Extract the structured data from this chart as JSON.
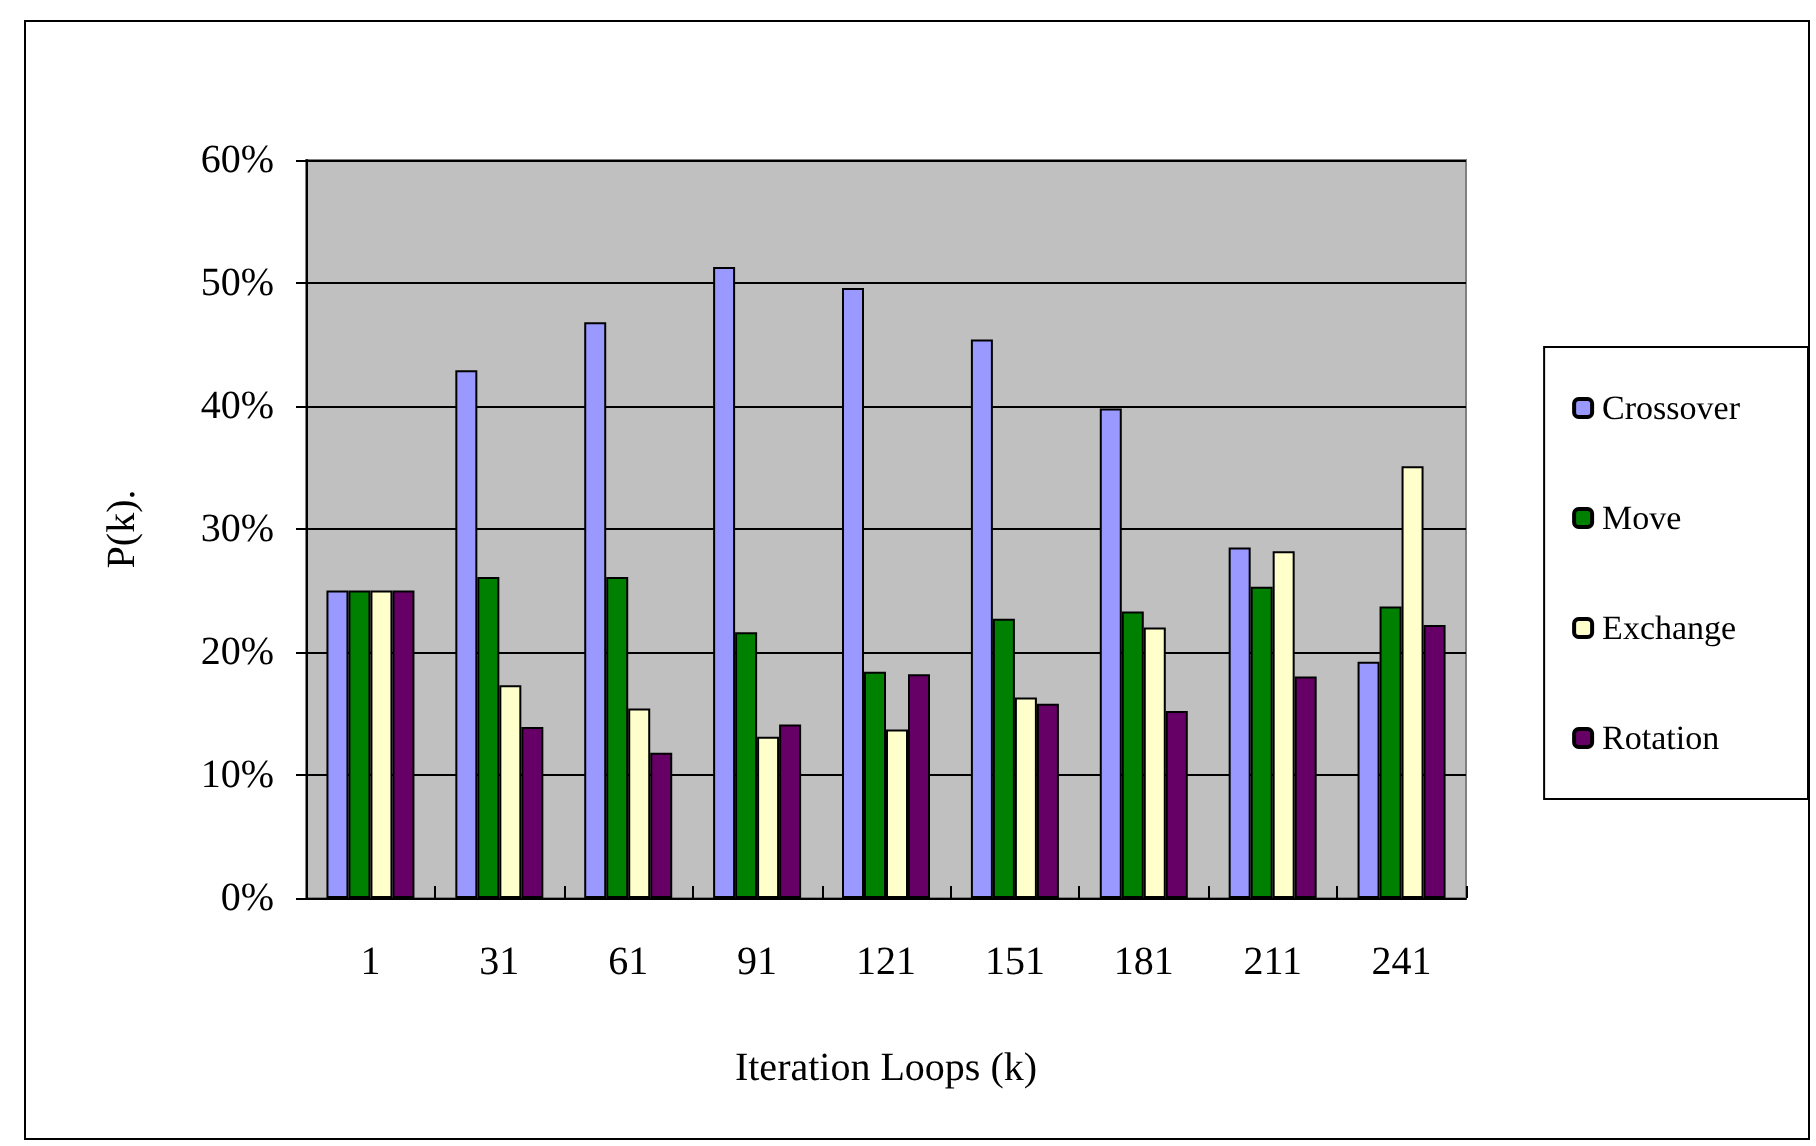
{
  "chart_data": {
    "type": "bar",
    "xlabel": "Iteration Loops (k)",
    "ylabel": "P(k).",
    "categories": [
      "1",
      "31",
      "61",
      "91",
      "121",
      "151",
      "181",
      "211",
      "241"
    ],
    "series": [
      {
        "name": "Crossover",
        "color": "#9999ff",
        "values": [
          25.0,
          42.9,
          46.8,
          51.3,
          49.6,
          45.4,
          39.8,
          28.5,
          19.2
        ]
      },
      {
        "name": "Move",
        "color": "#008000",
        "values": [
          25.0,
          26.1,
          26.1,
          21.6,
          18.4,
          22.7,
          23.3,
          25.3,
          23.7
        ]
      },
      {
        "name": "Exchange",
        "color": "#ffffcc",
        "values": [
          25.0,
          17.3,
          15.4,
          13.1,
          13.7,
          16.3,
          22.0,
          28.2,
          35.1
        ]
      },
      {
        "name": "Rotation",
        "color": "#660066",
        "values": [
          25.0,
          13.9,
          11.8,
          14.1,
          18.2,
          15.8,
          15.2,
          18.0,
          22.2
        ]
      }
    ],
    "ylim": [
      0,
      60
    ],
    "yticks": [
      {
        "value": 0,
        "label": "0%"
      },
      {
        "value": 10,
        "label": "10%"
      },
      {
        "value": 20,
        "label": "20%"
      },
      {
        "value": 30,
        "label": "30%"
      },
      {
        "value": 40,
        "label": "40%"
      },
      {
        "value": 50,
        "label": "50%"
      },
      {
        "value": 60,
        "label": "60%"
      }
    ],
    "grid": "y",
    "legend": "right"
  }
}
